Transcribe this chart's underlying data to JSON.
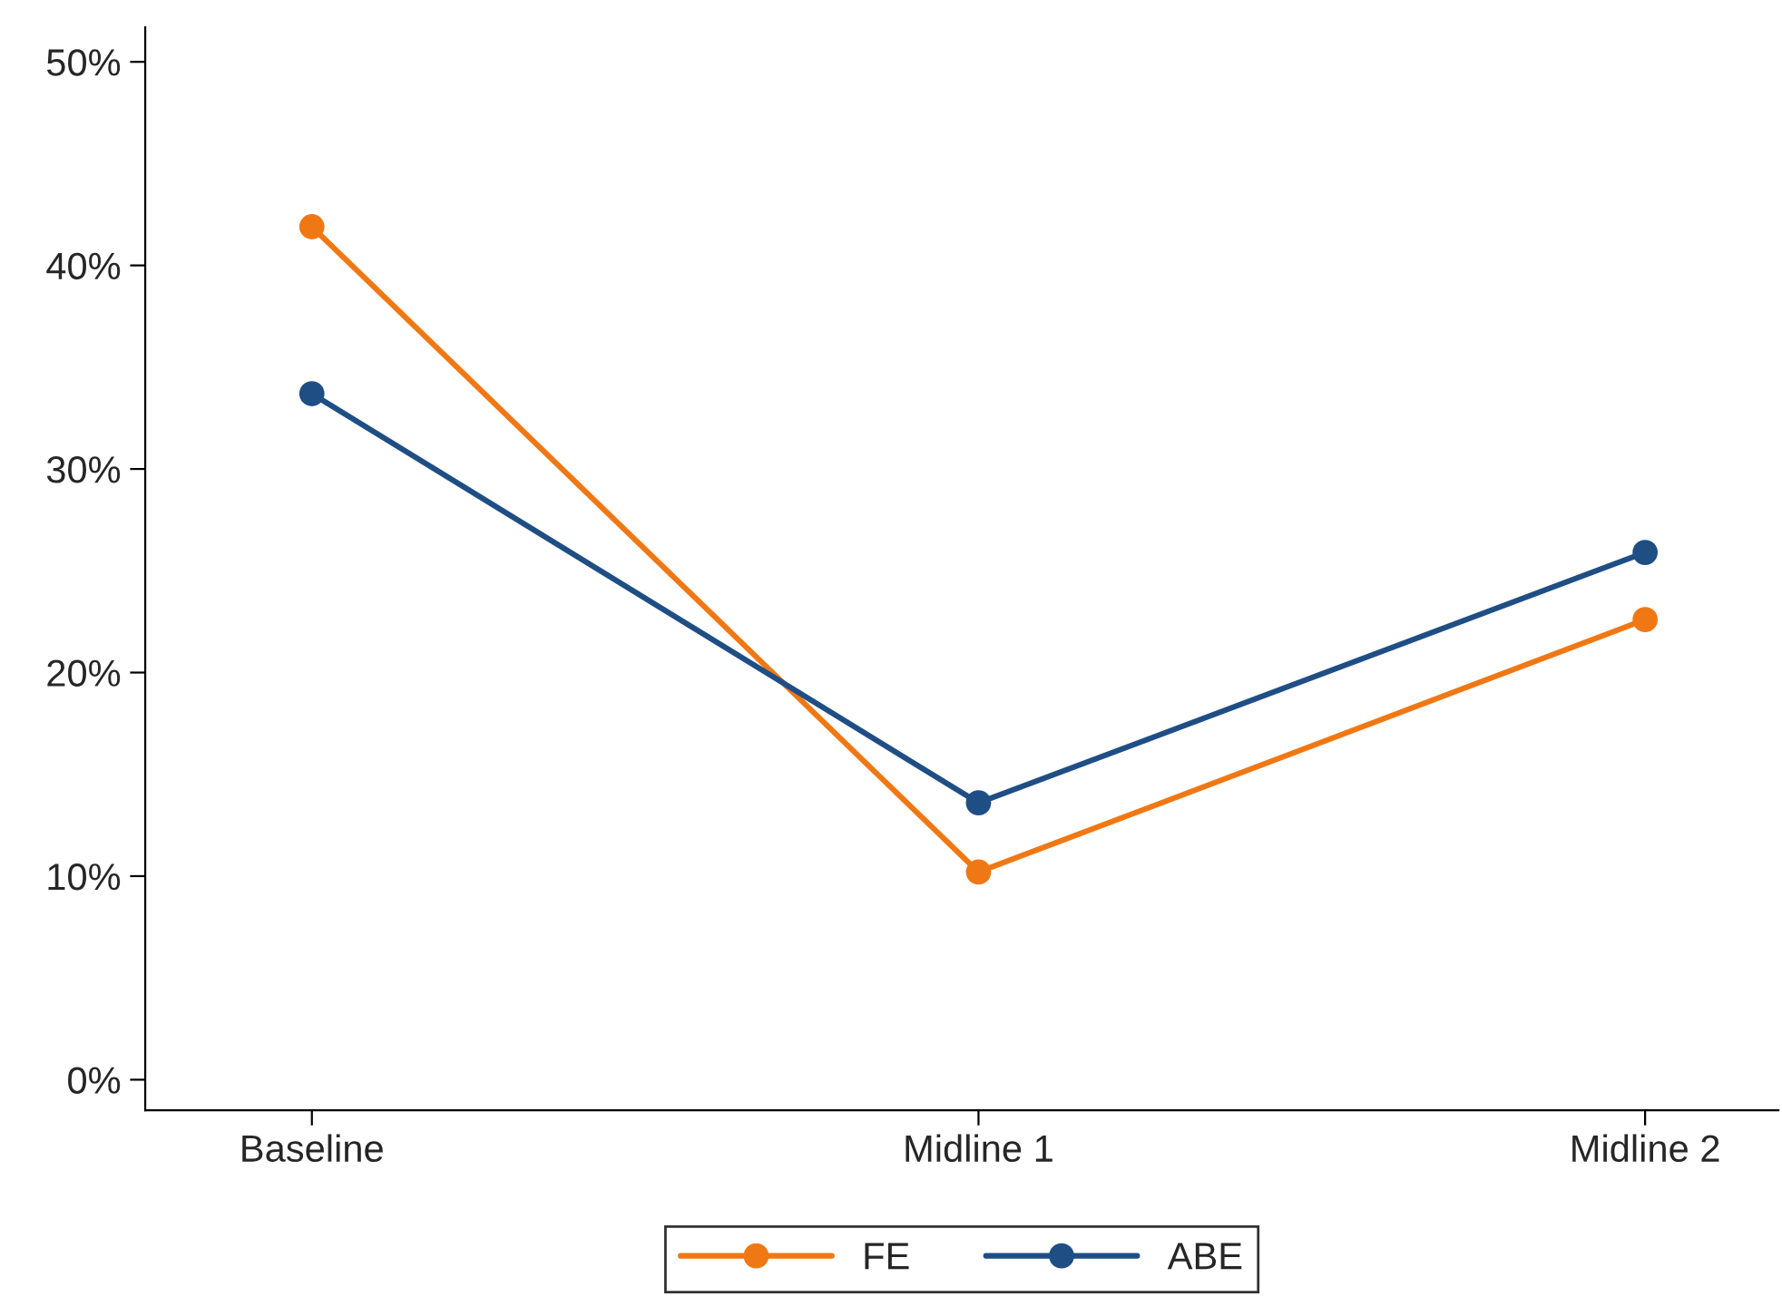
{
  "chart_data": {
    "type": "line",
    "categories": [
      "Baseline",
      "Midline 1",
      "Midline 2"
    ],
    "series": [
      {
        "name": "FE",
        "color": "#f07814",
        "values": [
          41.9,
          10.2,
          22.6
        ]
      },
      {
        "name": "ABE",
        "color": "#1f4e85",
        "values": [
          33.7,
          13.6,
          25.9
        ]
      }
    ],
    "ylim": [
      -1.5,
      51.7
    ],
    "yticks": [
      {
        "value": 0,
        "label": "0%"
      },
      {
        "value": 10,
        "label": "10%"
      },
      {
        "value": 20,
        "label": "20%"
      },
      {
        "value": 30,
        "label": "30%"
      },
      {
        "value": 40,
        "label": "40%"
      },
      {
        "value": 50,
        "label": "50%"
      }
    ],
    "marker": "circle",
    "line_style": "solid",
    "grid": false,
    "legend": "bottom"
  }
}
